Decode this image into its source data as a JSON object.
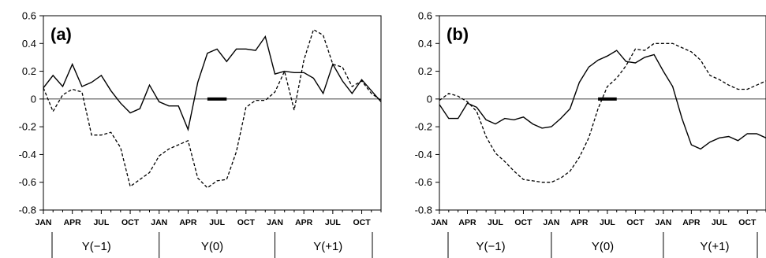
{
  "chart_data": [
    {
      "type": "line",
      "panel_label": "(a)",
      "x_tick_labels": [
        "JAN",
        "APR",
        "JUL",
        "OCT",
        "JAN",
        "APR",
        "JUL",
        "OCT",
        "JAN",
        "APR",
        "JUL",
        "OCT"
      ],
      "year_groups": [
        "Y(−1)",
        "Y(0)",
        "Y(+1)"
      ],
      "yticks": [
        "0.6",
        "0.4",
        "0.2",
        "0",
        "-0.2",
        "-0.4",
        "-0.6",
        "-0.8"
      ],
      "ylim": [
        -0.8,
        0.6
      ],
      "zero_line": true,
      "highlight_segment": {
        "x_start": 17,
        "x_end": 19,
        "y": 0
      },
      "series": [
        {
          "style": "solid",
          "values": [
            0.08,
            0.17,
            0.09,
            0.25,
            0.09,
            0.12,
            0.17,
            0.06,
            -0.03,
            -0.1,
            -0.07,
            0.1,
            -0.02,
            -0.05,
            -0.05,
            -0.22,
            0.12,
            0.33,
            0.36,
            0.27,
            0.36,
            0.36,
            0.35,
            0.45,
            0.18,
            0.2,
            0.19,
            0.19,
            0.15,
            0.04,
            0.25,
            0.13,
            0.04,
            0.14,
            0.06,
            -0.02
          ]
        },
        {
          "style": "dashed",
          "values": [
            0.08,
            -0.09,
            0.03,
            0.07,
            0.05,
            -0.26,
            -0.26,
            -0.24,
            -0.35,
            -0.63,
            -0.58,
            -0.53,
            -0.41,
            -0.36,
            -0.33,
            -0.3,
            -0.57,
            -0.64,
            -0.59,
            -0.58,
            -0.38,
            -0.06,
            -0.01,
            -0.01,
            0.05,
            0.2,
            -0.08,
            0.28,
            0.5,
            0.46,
            0.25,
            0.23,
            0.09,
            0.13,
            0.04,
            -0.01
          ]
        }
      ]
    },
    {
      "type": "line",
      "panel_label": "(b)",
      "x_tick_labels": [
        "JAN",
        "APR",
        "JUL",
        "OCT",
        "JAN",
        "APR",
        "JUL",
        "OCT",
        "JAN",
        "APR",
        "JUL",
        "OCT"
      ],
      "year_groups": [
        "Y(−1)",
        "Y(0)",
        "Y(+1)"
      ],
      "yticks": [
        "0.6",
        "0.4",
        "0.2",
        "0",
        "-0.2",
        "-0.4",
        "-0.6",
        "-0.8"
      ],
      "ylim": [
        -0.8,
        0.6
      ],
      "zero_line": true,
      "highlight_segment": {
        "x_start": 17,
        "x_end": 19,
        "y": 0
      },
      "series": [
        {
          "style": "solid",
          "values": [
            -0.04,
            -0.14,
            -0.14,
            -0.03,
            -0.06,
            -0.15,
            -0.18,
            -0.14,
            -0.15,
            -0.13,
            -0.18,
            -0.21,
            -0.2,
            -0.14,
            -0.07,
            0.12,
            0.23,
            0.28,
            0.31,
            0.35,
            0.27,
            0.26,
            0.3,
            0.32,
            0.2,
            0.09,
            -0.14,
            -0.33,
            -0.36,
            -0.31,
            -0.28,
            -0.27,
            -0.3,
            -0.25,
            -0.25,
            -0.28
          ]
        },
        {
          "style": "dashed",
          "values": [
            -0.01,
            0.04,
            0.02,
            -0.02,
            -0.09,
            -0.27,
            -0.39,
            -0.45,
            -0.52,
            -0.58,
            -0.59,
            -0.6,
            -0.6,
            -0.57,
            -0.52,
            -0.42,
            -0.28,
            -0.07,
            0.09,
            0.15,
            0.24,
            0.36,
            0.35,
            0.4,
            0.4,
            0.4,
            0.37,
            0.34,
            0.28,
            0.17,
            0.14,
            0.1,
            0.07,
            0.07,
            0.1,
            0.13
          ]
        }
      ]
    }
  ]
}
